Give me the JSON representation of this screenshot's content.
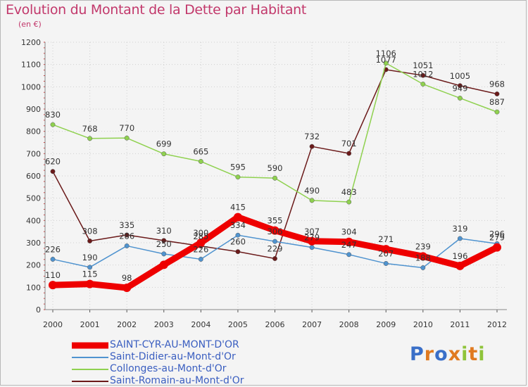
{
  "title": "Evolution du Montant de la Dette par Habitant",
  "subtitle": "(en €)",
  "logo_text": "Proxiti",
  "chart_data": {
    "type": "line",
    "x": [
      "2000",
      "2001",
      "2002",
      "2003",
      "2004",
      "2005",
      "2006",
      "2007",
      "2008",
      "2009",
      "2010",
      "2011",
      "2012"
    ],
    "ylim": [
      0,
      1200
    ],
    "yticks": [
      0,
      100,
      200,
      300,
      400,
      500,
      600,
      700,
      800,
      900,
      1000,
      1100,
      1200
    ],
    "grid": true,
    "legend_position": "bottom-left",
    "series": [
      {
        "name": "SAINT-CYR-AU-MONT-D'OR",
        "color": "#ee0000",
        "values": [
          110,
          115,
          98,
          201,
          300,
          415,
          355,
          307,
          304,
          271,
          239,
          196,
          279
        ],
        "labels": [
          "110",
          "115",
          "98",
          "",
          "300",
          "415",
          "355",
          "307",
          "304",
          "271",
          "239",
          "196",
          "279"
        ]
      },
      {
        "name": "Saint-Didier-au-Mont-d'Or",
        "color": "#4f93cf",
        "values": [
          226,
          190,
          286,
          250,
          226,
          334,
          306,
          279,
          247,
          207,
          188,
          319,
          296
        ],
        "labels": [
          "226",
          "190",
          "286",
          "250",
          "226",
          "334",
          "306",
          "279",
          "247",
          "207",
          "188",
          "319",
          "296"
        ]
      },
      {
        "name": "Collonges-au-Mont-d'Or",
        "color": "#8fd14f",
        "values": [
          830,
          768,
          770,
          699,
          665,
          595,
          590,
          490,
          483,
          1106,
          1012,
          949,
          887
        ],
        "labels": [
          "830",
          "768",
          "770",
          "699",
          "665",
          "595",
          "590",
          "490",
          "483",
          "1106",
          "1012",
          "949",
          "887"
        ]
      },
      {
        "name": "Saint-Romain-au-Mont-d'Or",
        "color": "#6b1a1a",
        "values": [
          620,
          308,
          335,
          310,
          285,
          260,
          229,
          732,
          701,
          1077,
          1051,
          1005,
          968
        ],
        "labels": [
          "620",
          "308",
          "335",
          "310",
          "285",
          "260",
          "229",
          "732",
          "701",
          "1077",
          "1051",
          "1005",
          "968"
        ]
      }
    ]
  }
}
